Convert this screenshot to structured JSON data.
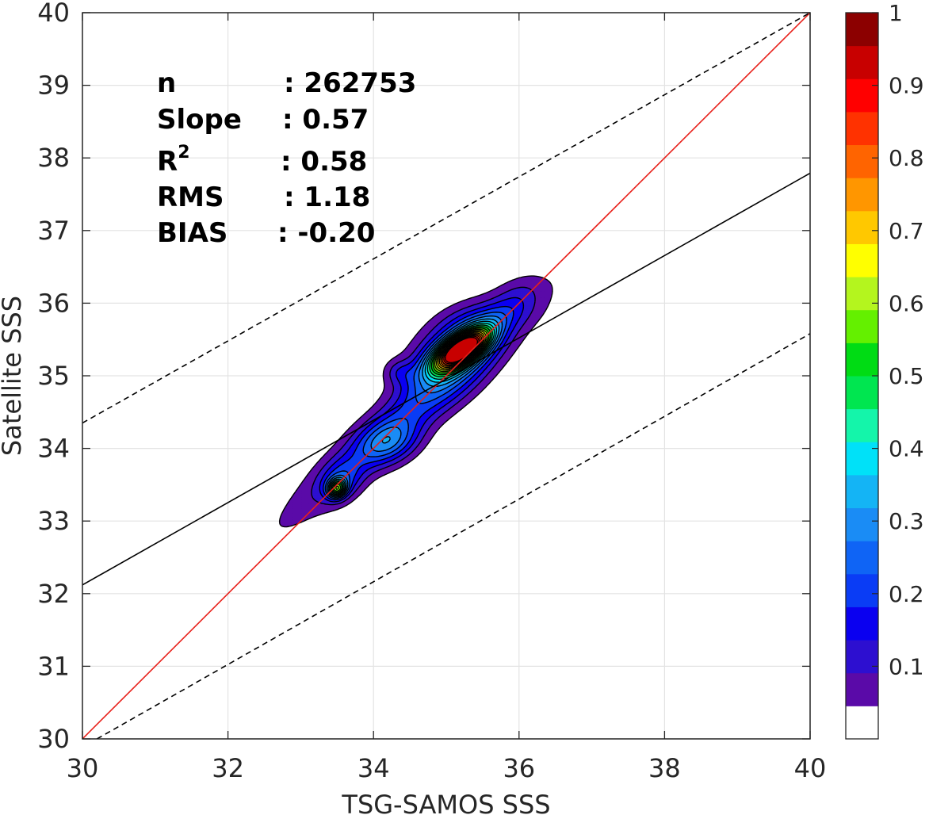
{
  "chart_data": {
    "type": "heatmap",
    "subtype": "filled-contour density with regression lines",
    "xlabel": "TSG-SAMOS SSS",
    "ylabel": "Satellite SSS",
    "xlim": [
      30,
      40
    ],
    "ylim": [
      30,
      40
    ],
    "xticks": [
      "30",
      "32",
      "34",
      "36",
      "38",
      "40"
    ],
    "yticks": [
      "30",
      "31",
      "32",
      "33",
      "34",
      "35",
      "36",
      "37",
      "38",
      "39",
      "40"
    ],
    "grid": true,
    "stats": [
      {
        "key": "n",
        "value": ": 262753"
      },
      {
        "key": "Slope",
        "value": ": 0.57"
      },
      {
        "key": "R",
        "sup": "2",
        "value": ": 0.58"
      },
      {
        "key": "RMS",
        "value": ": 1.18"
      },
      {
        "key": "BIAS",
        "value": ": -0.20"
      }
    ],
    "lines": [
      {
        "name": "1:1",
        "style": "solid",
        "color": "#e8201a",
        "points": [
          [
            30,
            30
          ],
          [
            40,
            40
          ]
        ]
      },
      {
        "name": "regression",
        "style": "solid",
        "color": "#000000",
        "points": [
          [
            30,
            32.12
          ],
          [
            40,
            37.79
          ]
        ]
      },
      {
        "name": "upper bound",
        "style": "dashed",
        "color": "#000000",
        "points": [
          [
            30,
            34.35
          ],
          [
            40,
            40
          ]
        ]
      },
      {
        "name": "lower bound",
        "style": "dashed",
        "color": "#000000",
        "points": [
          [
            30.2,
            30
          ],
          [
            40,
            35.58
          ]
        ]
      }
    ],
    "density_peaks": [
      {
        "x": 35.2,
        "y": 35.35,
        "max": 1.0
      },
      {
        "x": 33.5,
        "y": 33.45,
        "max": 0.45
      },
      {
        "x": 34.1,
        "y": 34.05,
        "max": 0.2
      }
    ],
    "contour_levels": [
      0.05,
      0.1,
      0.15,
      0.2,
      0.25,
      0.3,
      0.35,
      0.4,
      0.45,
      0.5,
      0.55,
      0.6,
      0.65,
      0.7,
      0.75,
      0.8,
      0.85,
      0.9,
      0.95,
      1.0
    ],
    "colorbar": {
      "ticks": [
        "0.1",
        "0.2",
        "0.3",
        "0.4",
        "0.5",
        "0.6",
        "0.7",
        "0.8",
        "0.9",
        "1"
      ],
      "tick_values": [
        0.1,
        0.2,
        0.3,
        0.4,
        0.5,
        0.6,
        0.7,
        0.8,
        0.9,
        1.0
      ],
      "range": [
        0,
        1
      ],
      "colors": [
        "#ffffff",
        "#5a0aa8",
        "#2d0fd0",
        "#0a00f0",
        "#0a3cf5",
        "#0f64f5",
        "#1a8cf5",
        "#14b4f5",
        "#00e1f8",
        "#14f5aa",
        "#00e650",
        "#00dc14",
        "#64f000",
        "#b4f51e",
        "#ffff00",
        "#ffc800",
        "#ff9600",
        "#ff6400",
        "#ff3200",
        "#ff0000",
        "#c80000",
        "#8c0000"
      ]
    }
  }
}
